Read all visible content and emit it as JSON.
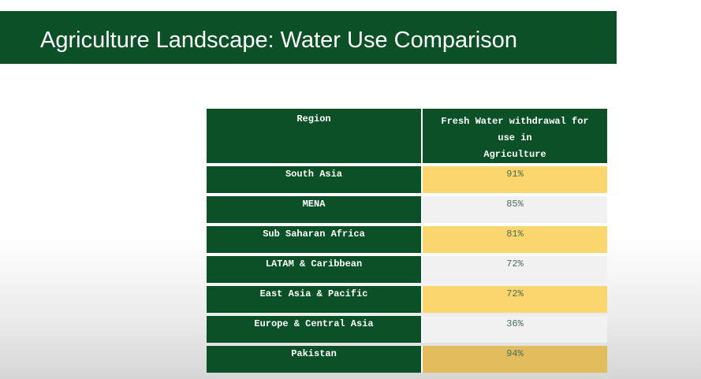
{
  "slide": {
    "title": "Agriculture Landscape: Water Use Comparison"
  },
  "table": {
    "header_region": "Region",
    "header_value_line1": "Fresh Water withdrawal for",
    "header_value_line2": "use in",
    "header_value_line3": "Agriculture",
    "rows": [
      {
        "region": "South Asia",
        "value": "91%"
      },
      {
        "region": "MENA",
        "value": "85%"
      },
      {
        "region": "Sub Saharan Africa",
        "value": "81%"
      },
      {
        "region": "LATAM & Caribbean",
        "value": "72%"
      },
      {
        "region": "East Asia & Pacific",
        "value": "72%"
      },
      {
        "region": "Europe & Central Asia",
        "value": "36%"
      },
      {
        "region": "Pakistan",
        "value": "94%"
      }
    ]
  },
  "colors": {
    "brand_green": "#0b5027",
    "highlight_yellow": "#fbd56d",
    "neutral_grey": "#f1f1f1",
    "pakistan_gold": "#e2bc5c"
  }
}
